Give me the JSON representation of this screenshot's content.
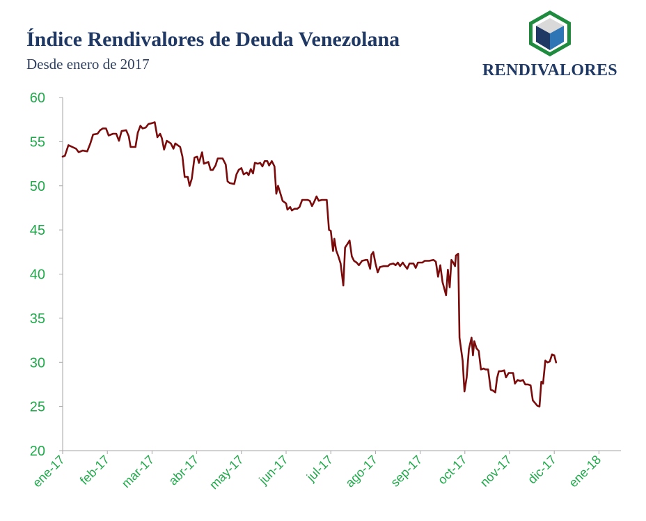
{
  "header": {
    "title": "Índice Rendivalores de Deuda Venezolana",
    "subtitle": "Desde enero de 2017"
  },
  "logo": {
    "text": "RENDIVALORES",
    "icon": "cube-hexagon-icon",
    "colors": {
      "frame": "#1e8b3e",
      "top": "#d9d9d9",
      "left": "#1f3864",
      "right": "#2e75b6"
    }
  },
  "colors": {
    "line": "#7b0b0b",
    "axis_labels": "#1faa4a",
    "axis": "#a6a6a6"
  },
  "chart_data": {
    "type": "line",
    "title": "Índice Rendivalores de Deuda Venezolana",
    "subtitle": "Desde enero de 2017",
    "xlabel": "",
    "ylabel": "",
    "ylim": [
      20,
      60
    ],
    "yticks": [
      20,
      25,
      30,
      35,
      40,
      45,
      50,
      55,
      60
    ],
    "xlim": [
      0,
      12.6
    ],
    "xtick_labels": [
      "ene-17",
      "feb-17",
      "mar-17",
      "abr-17",
      "may-17",
      "jun-17",
      "jul-17",
      "ago-17",
      "sep-17",
      "oct-17",
      "nov-17",
      "dic-17",
      "ene-18"
    ],
    "grid": false,
    "legend": "none",
    "series": [
      {
        "values": [
          [
            0.0,
            53.3
          ],
          [
            0.05,
            53.4
          ],
          [
            0.13,
            54.6
          ],
          [
            0.3,
            54.2
          ],
          [
            0.36,
            53.8
          ],
          [
            0.45,
            54.0
          ],
          [
            0.55,
            53.9
          ],
          [
            0.62,
            54.8
          ],
          [
            0.68,
            55.8
          ],
          [
            0.78,
            55.9
          ],
          [
            0.84,
            56.3
          ],
          [
            0.9,
            56.5
          ],
          [
            0.97,
            56.5
          ],
          [
            1.03,
            55.7
          ],
          [
            1.13,
            55.9
          ],
          [
            1.2,
            55.9
          ],
          [
            1.26,
            55.1
          ],
          [
            1.32,
            56.2
          ],
          [
            1.42,
            56.3
          ],
          [
            1.48,
            55.6
          ],
          [
            1.52,
            54.4
          ],
          [
            1.63,
            54.4
          ],
          [
            1.68,
            56.0
          ],
          [
            1.74,
            56.8
          ],
          [
            1.79,
            56.5
          ],
          [
            1.86,
            56.6
          ],
          [
            1.92,
            57.0
          ],
          [
            2.0,
            57.1
          ],
          [
            2.06,
            57.2
          ],
          [
            2.12,
            55.5
          ],
          [
            2.18,
            55.9
          ],
          [
            2.22,
            55.4
          ],
          [
            2.27,
            54.1
          ],
          [
            2.33,
            55.1
          ],
          [
            2.42,
            54.8
          ],
          [
            2.48,
            54.2
          ],
          [
            2.52,
            54.8
          ],
          [
            2.63,
            54.4
          ],
          [
            2.68,
            53.3
          ],
          [
            2.73,
            51.0
          ],
          [
            2.8,
            51.0
          ],
          [
            2.84,
            50.0
          ],
          [
            2.89,
            50.8
          ],
          [
            2.95,
            53.2
          ],
          [
            3.01,
            53.3
          ],
          [
            3.05,
            52.6
          ],
          [
            3.12,
            53.8
          ],
          [
            3.16,
            52.5
          ],
          [
            3.26,
            52.7
          ],
          [
            3.31,
            51.8
          ],
          [
            3.36,
            51.8
          ],
          [
            3.42,
            52.3
          ],
          [
            3.47,
            53.1
          ],
          [
            3.58,
            53.1
          ],
          [
            3.65,
            52.4
          ],
          [
            3.69,
            50.5
          ],
          [
            3.74,
            50.3
          ],
          [
            3.84,
            50.2
          ],
          [
            3.89,
            51.3
          ],
          [
            3.94,
            51.8
          ],
          [
            4.0,
            52.0
          ],
          [
            4.05,
            51.3
          ],
          [
            4.12,
            51.5
          ],
          [
            4.16,
            51.2
          ],
          [
            4.21,
            51.9
          ],
          [
            4.26,
            51.4
          ],
          [
            4.3,
            52.6
          ],
          [
            4.37,
            52.5
          ],
          [
            4.42,
            52.6
          ],
          [
            4.47,
            52.2
          ],
          [
            4.52,
            52.8
          ],
          [
            4.58,
            52.8
          ],
          [
            4.62,
            52.3
          ],
          [
            4.68,
            52.8
          ],
          [
            4.74,
            52.2
          ],
          [
            4.78,
            49.1
          ],
          [
            4.82,
            50.0
          ],
          [
            4.88,
            49.0
          ],
          [
            4.92,
            48.3
          ],
          [
            5.0,
            48.0
          ],
          [
            5.03,
            47.3
          ],
          [
            5.09,
            47.6
          ],
          [
            5.13,
            47.2
          ],
          [
            5.19,
            47.4
          ],
          [
            5.25,
            47.4
          ],
          [
            5.3,
            47.6
          ],
          [
            5.36,
            48.4
          ],
          [
            5.48,
            48.4
          ],
          [
            5.53,
            48.3
          ],
          [
            5.58,
            47.7
          ],
          [
            5.63,
            48.2
          ],
          [
            5.68,
            48.8
          ],
          [
            5.73,
            48.3
          ],
          [
            5.8,
            48.4
          ],
          [
            5.85,
            48.4
          ],
          [
            5.91,
            48.4
          ],
          [
            5.96,
            45.0
          ],
          [
            6.0,
            44.9
          ],
          [
            6.05,
            42.6
          ],
          [
            6.08,
            44.0
          ],
          [
            6.12,
            42.7
          ],
          [
            6.17,
            42.0
          ],
          [
            6.22,
            41.2
          ],
          [
            6.28,
            38.7
          ],
          [
            6.32,
            43.0
          ],
          [
            6.37,
            43.4
          ],
          [
            6.42,
            43.8
          ],
          [
            6.47,
            42.0
          ],
          [
            6.52,
            41.5
          ],
          [
            6.58,
            41.3
          ],
          [
            6.63,
            41.0
          ],
          [
            6.7,
            41.5
          ],
          [
            6.78,
            41.6
          ],
          [
            6.82,
            41.6
          ],
          [
            6.88,
            40.6
          ],
          [
            6.91,
            42.2
          ],
          [
            6.95,
            42.5
          ],
          [
            7.0,
            41.2
          ],
          [
            7.05,
            40.2
          ],
          [
            7.1,
            40.8
          ],
          [
            7.18,
            40.9
          ],
          [
            7.28,
            40.9
          ],
          [
            7.32,
            41.1
          ],
          [
            7.4,
            41.2
          ],
          [
            7.45,
            41.0
          ],
          [
            7.5,
            41.3
          ],
          [
            7.55,
            40.9
          ],
          [
            7.61,
            41.3
          ],
          [
            7.65,
            41.0
          ],
          [
            7.71,
            40.6
          ],
          [
            7.76,
            41.2
          ],
          [
            7.85,
            41.2
          ],
          [
            7.9,
            40.7
          ],
          [
            7.95,
            41.3
          ],
          [
            8.05,
            41.3
          ],
          [
            8.1,
            41.5
          ],
          [
            8.2,
            41.5
          ],
          [
            8.3,
            41.6
          ],
          [
            8.35,
            41.4
          ],
          [
            8.4,
            39.7
          ],
          [
            8.45,
            41.0
          ],
          [
            8.5,
            39.1
          ],
          [
            8.58,
            37.6
          ],
          [
            8.62,
            40.5
          ],
          [
            8.66,
            38.5
          ],
          [
            8.7,
            41.6
          ],
          [
            8.74,
            41.3
          ],
          [
            8.78,
            40.9
          ],
          [
            8.8,
            42.1
          ],
          [
            8.85,
            42.3
          ],
          [
            8.88,
            32.8
          ],
          [
            8.95,
            30.2
          ],
          [
            8.99,
            26.7
          ],
          [
            9.04,
            28.3
          ],
          [
            9.09,
            31.5
          ],
          [
            9.15,
            32.8
          ],
          [
            9.18,
            30.8
          ],
          [
            9.21,
            32.4
          ],
          [
            9.26,
            31.6
          ],
          [
            9.31,
            31.3
          ],
          [
            9.36,
            29.2
          ],
          [
            9.42,
            29.3
          ],
          [
            9.46,
            29.2
          ],
          [
            9.52,
            29.2
          ],
          [
            9.58,
            26.9
          ],
          [
            9.63,
            26.8
          ],
          [
            9.68,
            26.6
          ],
          [
            9.72,
            28.2
          ],
          [
            9.76,
            29.0
          ],
          [
            9.82,
            29.0
          ],
          [
            9.88,
            29.1
          ],
          [
            9.92,
            28.3
          ],
          [
            9.98,
            28.8
          ],
          [
            10.04,
            28.8
          ],
          [
            10.08,
            28.8
          ],
          [
            10.12,
            27.6
          ],
          [
            10.18,
            28.0
          ],
          [
            10.24,
            27.9
          ],
          [
            10.3,
            28.0
          ],
          [
            10.35,
            27.5
          ],
          [
            10.41,
            27.5
          ],
          [
            10.47,
            27.4
          ],
          [
            10.52,
            25.7
          ],
          [
            10.57,
            25.4
          ],
          [
            10.62,
            25.1
          ],
          [
            10.67,
            25.0
          ],
          [
            10.71,
            27.8
          ],
          [
            10.75,
            27.6
          ],
          [
            10.8,
            30.2
          ],
          [
            10.85,
            30.0
          ],
          [
            10.9,
            30.1
          ],
          [
            10.95,
            30.9
          ],
          [
            11.0,
            30.8
          ],
          [
            11.04,
            30.0
          ]
        ]
      }
    ]
  }
}
